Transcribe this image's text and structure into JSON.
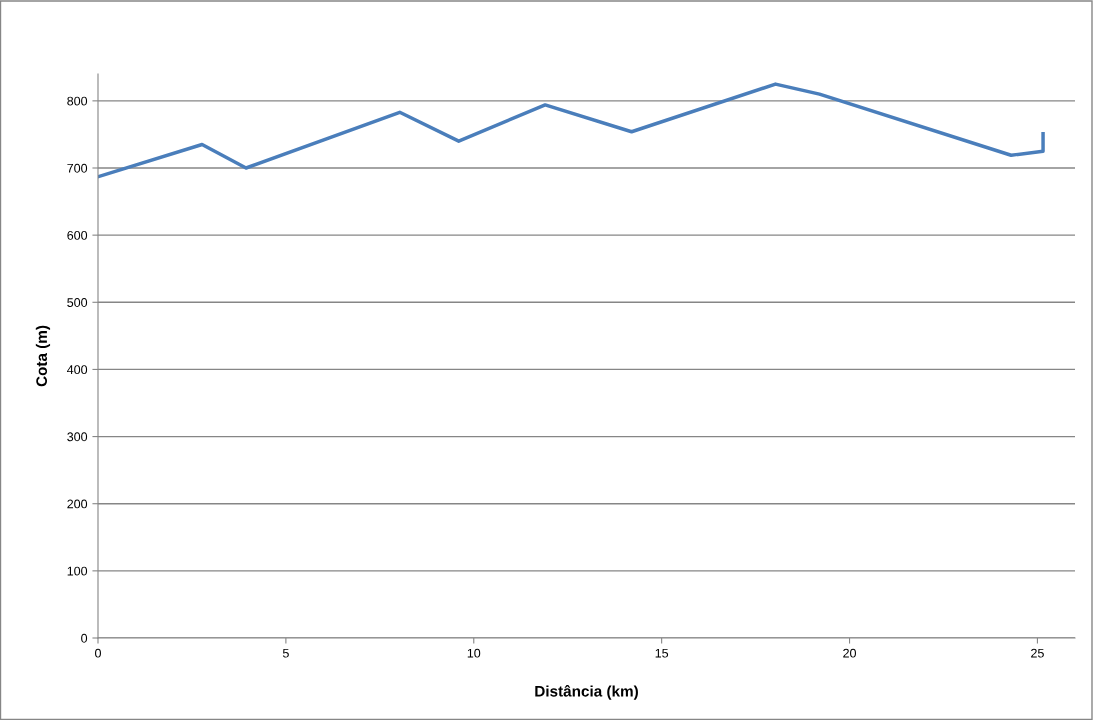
{
  "chart_data": {
    "type": "line",
    "xlabel": "Distância (km)",
    "ylabel": "Cota (m)",
    "series": [
      {
        "color": "#4a7ebb",
        "x": [
          0,
          2.77,
          3.94,
          8.03,
          9.6,
          11.9,
          14.2,
          18.03,
          19.2,
          24.3,
          25.15,
          25.15
        ],
        "values": [
          687,
          735,
          700,
          783,
          740,
          794,
          754,
          825,
          810,
          719,
          725,
          751
        ]
      }
    ],
    "xlim": [
      0,
      26
    ],
    "ylim": [
      0,
      840
    ],
    "xticks": [
      0,
      5,
      10,
      15,
      20,
      25
    ],
    "yticks": [
      0,
      100,
      200,
      300,
      400,
      500,
      600,
      700,
      800
    ],
    "grid": "y",
    "legend": false
  }
}
